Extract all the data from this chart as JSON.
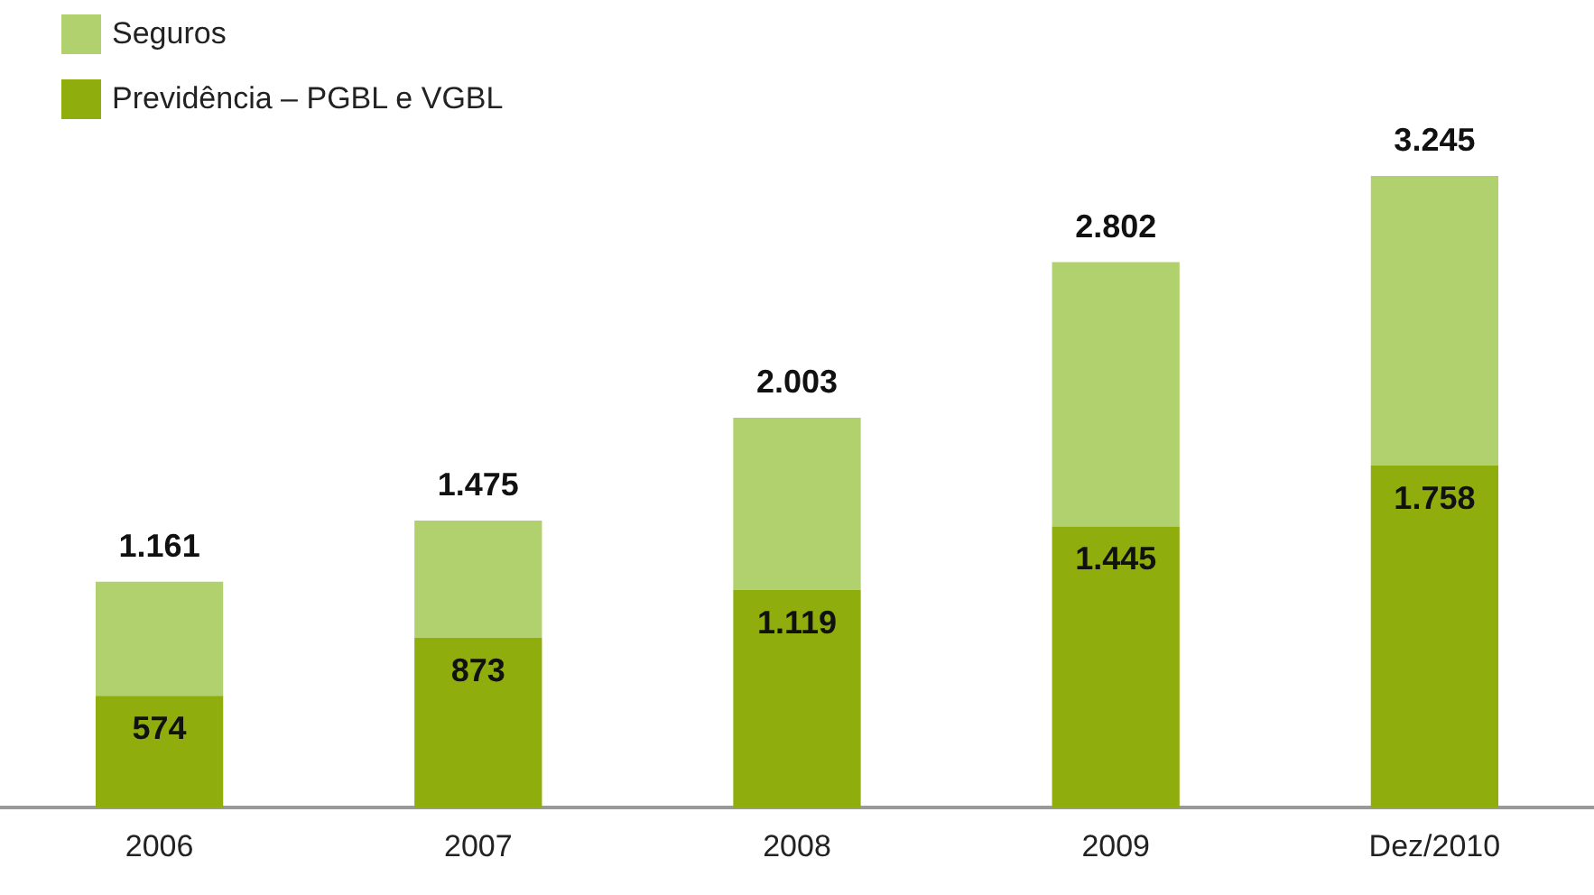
{
  "chart_data": {
    "type": "bar",
    "stacked": true,
    "categories": [
      "2006",
      "2007",
      "2008",
      "2009",
      "Dez/2010"
    ],
    "series": [
      {
        "name": "Previdência – PGBL e VGBL",
        "color": "#8fad0c",
        "values": [
          574,
          873,
          1119,
          1445,
          1758
        ],
        "value_labels": [
          "574",
          "873",
          "1.119",
          "1.445",
          "1.758"
        ]
      },
      {
        "name": "Seguros",
        "color": "#b1d16f",
        "values": [
          587,
          602,
          884,
          1357,
          1487
        ]
      }
    ],
    "totals": [
      "1.161",
      "1.475",
      "2.003",
      "2.802",
      "3.245"
    ],
    "legend": "top left",
    "grid": false
  }
}
